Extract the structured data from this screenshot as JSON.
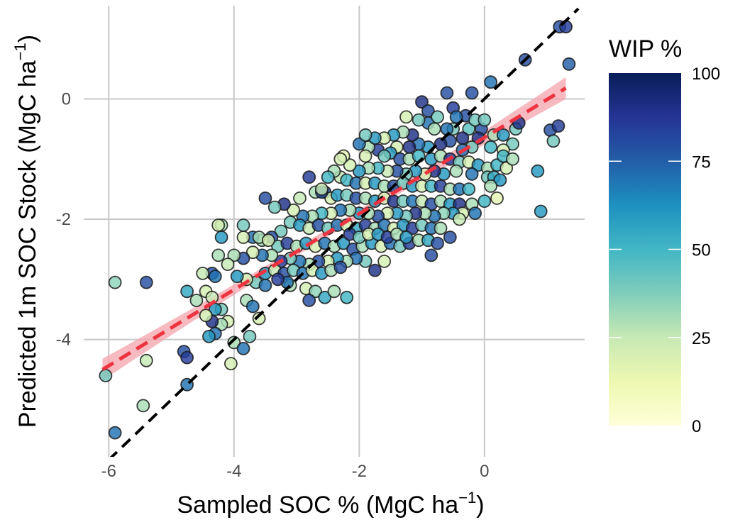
{
  "chart_data": {
    "type": "scatter",
    "title": "",
    "xlabel": "Sampled SOC % (MgC ha",
    "xlabel_sup": "−1",
    "xlabel_end": ")",
    "ylabel": "Predicted 1m SOC Stock (MgC ha",
    "ylabel_sup": "−1",
    "ylabel_end": ")",
    "xlim": [
      -6.4,
      1.6
    ],
    "ylim": [
      -5.95,
      1.55
    ],
    "x_ticks": [
      -6,
      -4,
      -2,
      0
    ],
    "x_tick_labels": [
      "-6",
      "-4",
      "-2",
      "0"
    ],
    "y_ticks": [
      -4,
      -2,
      0
    ],
    "y_tick_labels": [
      "-4",
      "-2",
      "0"
    ],
    "grid": true,
    "color_variable": "WIP %",
    "colorbar": {
      "title": "WIP %",
      "min": 0,
      "max": 100,
      "ticks": [
        0,
        25,
        50,
        75,
        100
      ],
      "tick_labels": [
        "0",
        "25",
        "50",
        "75",
        "100"
      ],
      "colors": [
        "#ffffd9",
        "#edf8b1",
        "#c7e9b4",
        "#7fcdbb",
        "#41b6c4",
        "#1d91c0",
        "#225ea8",
        "#253494",
        "#081d58"
      ]
    },
    "identity_line": {
      "from": [
        -6.0,
        -6.0
      ],
      "to": [
        1.5,
        1.5
      ],
      "color": "#000000",
      "style": "dashed"
    },
    "regression_line": {
      "from": [
        -6.1,
        -4.5
      ],
      "to": [
        1.3,
        0.18
      ],
      "color": "#ee3340",
      "ci_width": 0.13,
      "style": "dashed"
    },
    "points": [
      [
        1.2,
        1.2,
        80
      ],
      [
        1.3,
        1.2,
        85
      ],
      [
        1.35,
        0.58,
        75
      ],
      [
        0.65,
        0.65,
        80
      ],
      [
        0.1,
        0.28,
        70
      ],
      [
        -0.2,
        0.1,
        80
      ],
      [
        -0.6,
        0.1,
        80
      ],
      [
        1.05,
        -0.52,
        80
      ],
      [
        1.18,
        -0.45,
        85
      ],
      [
        1.1,
        -0.7,
        40
      ],
      [
        0.9,
        -1.87,
        60
      ],
      [
        -1.0,
        -0.05,
        90
      ],
      [
        -0.9,
        -0.2,
        80
      ],
      [
        -0.5,
        -0.15,
        85
      ],
      [
        -0.3,
        -0.28,
        80
      ],
      [
        -0.9,
        -0.4,
        70
      ],
      [
        -0.8,
        -0.5,
        30
      ],
      [
        -0.5,
        -0.5,
        40
      ],
      [
        -0.6,
        -0.5,
        70
      ],
      [
        -0.25,
        -0.5,
        45
      ],
      [
        -0.05,
        -0.5,
        80
      ],
      [
        0.15,
        -0.6,
        30
      ],
      [
        0.3,
        -0.6,
        60
      ],
      [
        0.5,
        -0.5,
        40
      ],
      [
        0.45,
        -0.75,
        40
      ],
      [
        0.3,
        -0.85,
        20
      ],
      [
        0.1,
        -0.8,
        50
      ],
      [
        -0.1,
        -0.65,
        90
      ],
      [
        -0.2,
        -0.8,
        40
      ],
      [
        -0.35,
        -0.85,
        70
      ],
      [
        -0.55,
        -0.7,
        80
      ],
      [
        -0.7,
        -0.75,
        90
      ],
      [
        -0.9,
        -0.8,
        60
      ],
      [
        -1.05,
        -0.75,
        70
      ],
      [
        -1.2,
        -0.8,
        90
      ],
      [
        -1.4,
        -0.8,
        20
      ],
      [
        -1.5,
        -0.9,
        60
      ],
      [
        -1.7,
        -0.85,
        85
      ],
      [
        -1.85,
        -0.8,
        30
      ],
      [
        -2.0,
        -0.75,
        70
      ],
      [
        -1.9,
        -0.95,
        20
      ],
      [
        -1.6,
        -0.95,
        40
      ],
      [
        -1.35,
        -1.0,
        80
      ],
      [
        -1.2,
        -1.0,
        30
      ],
      [
        -1.05,
        -0.95,
        50
      ],
      [
        -0.85,
        -1.0,
        60
      ],
      [
        -0.7,
        -0.95,
        30
      ],
      [
        -0.55,
        -1.0,
        85
      ],
      [
        -0.4,
        -1.05,
        40
      ],
      [
        -0.25,
        -1.05,
        20
      ],
      [
        -0.1,
        -1.1,
        60
      ],
      [
        0.05,
        -1.15,
        30
      ],
      [
        0.2,
        -1.1,
        50
      ],
      [
        0.35,
        -1.15,
        20
      ],
      [
        0.05,
        -1.3,
        40
      ],
      [
        -0.2,
        -1.25,
        70
      ],
      [
        -0.45,
        -1.2,
        30
      ],
      [
        -0.65,
        -1.25,
        60
      ],
      [
        -0.8,
        -1.2,
        90
      ],
      [
        -0.95,
        -1.25,
        20
      ],
      [
        -1.1,
        -1.2,
        60
      ],
      [
        -1.25,
        -1.25,
        40
      ],
      [
        -1.4,
        -1.2,
        80
      ],
      [
        -1.55,
        -1.2,
        25
      ],
      [
        -1.7,
        -1.15,
        50
      ],
      [
        -1.85,
        -1.15,
        30
      ],
      [
        -2.0,
        -1.2,
        60
      ],
      [
        -2.15,
        -1.1,
        20
      ],
      [
        -2.25,
        -0.95,
        15
      ],
      [
        -2.3,
        -1.3,
        25
      ],
      [
        -2.2,
        -1.35,
        50
      ],
      [
        -2.05,
        -1.4,
        70
      ],
      [
        -1.9,
        -1.4,
        20
      ],
      [
        -1.75,
        -1.4,
        60
      ],
      [
        -1.6,
        -1.45,
        30
      ],
      [
        -1.45,
        -1.45,
        80
      ],
      [
        -1.3,
        -1.4,
        40
      ],
      [
        -1.15,
        -1.45,
        60
      ],
      [
        -1.0,
        -1.45,
        20
      ],
      [
        -0.85,
        -1.45,
        50
      ],
      [
        -0.7,
        -1.45,
        85
      ],
      [
        -0.55,
        -1.5,
        30
      ],
      [
        -0.4,
        -1.5,
        70
      ],
      [
        -0.25,
        -1.5,
        50
      ],
      [
        0.15,
        -1.3,
        55
      ],
      [
        0.25,
        -1.35,
        60
      ],
      [
        -2.8,
        -1.3,
        85
      ],
      [
        -2.7,
        -1.55,
        30
      ],
      [
        -2.55,
        -1.55,
        80
      ],
      [
        -2.45,
        -1.65,
        20
      ],
      [
        -2.35,
        -1.6,
        60
      ],
      [
        -2.2,
        -1.6,
        40
      ],
      [
        -2.05,
        -1.65,
        80
      ],
      [
        -1.9,
        -1.65,
        30
      ],
      [
        -1.75,
        -1.7,
        60
      ],
      [
        -1.6,
        -1.65,
        20
      ],
      [
        -1.45,
        -1.7,
        90
      ],
      [
        -1.3,
        -1.7,
        40
      ],
      [
        -1.15,
        -1.7,
        70
      ],
      [
        -1.0,
        -1.7,
        25
      ],
      [
        -0.85,
        -1.75,
        80
      ],
      [
        -0.7,
        -1.7,
        30
      ],
      [
        -0.55,
        -1.75,
        60
      ],
      [
        -0.4,
        -1.75,
        90
      ],
      [
        -0.2,
        -1.75,
        30
      ],
      [
        0.0,
        -1.7,
        50
      ],
      [
        0.1,
        -1.45,
        30
      ],
      [
        0.2,
        -1.65,
        15
      ],
      [
        -0.15,
        -1.9,
        70
      ],
      [
        -0.35,
        -1.9,
        20
      ],
      [
        -0.5,
        -1.9,
        60
      ],
      [
        -0.65,
        -1.9,
        35
      ],
      [
        -0.8,
        -1.95,
        70
      ],
      [
        -0.95,
        -1.9,
        30
      ],
      [
        -1.1,
        -1.9,
        90
      ],
      [
        -1.25,
        -1.95,
        40
      ],
      [
        -1.4,
        -1.9,
        60
      ],
      [
        -1.55,
        -1.9,
        20
      ],
      [
        -1.7,
        -1.95,
        80
      ],
      [
        -1.85,
        -1.9,
        30
      ],
      [
        -2.0,
        -1.9,
        60
      ],
      [
        -2.15,
        -1.85,
        30
      ],
      [
        -2.3,
        -1.85,
        70
      ],
      [
        -2.45,
        -1.9,
        20
      ],
      [
        -2.6,
        -1.9,
        50
      ],
      [
        -2.75,
        -1.95,
        30
      ],
      [
        -2.9,
        -1.95,
        70
      ],
      [
        -3.05,
        -1.85,
        20
      ],
      [
        -3.2,
        -1.75,
        90
      ],
      [
        -3.35,
        -1.8,
        40
      ],
      [
        -3.5,
        -1.65,
        80
      ],
      [
        -2.6,
        -1.55,
        80
      ],
      [
        -2.95,
        -1.65,
        25
      ],
      [
        -3.1,
        -2.05,
        40
      ],
      [
        -2.95,
        -2.1,
        60
      ],
      [
        -2.8,
        -2.15,
        25
      ],
      [
        -2.65,
        -2.1,
        80
      ],
      [
        -2.5,
        -2.15,
        40
      ],
      [
        -2.35,
        -2.1,
        70
      ],
      [
        -2.2,
        -2.1,
        20
      ],
      [
        -2.05,
        -2.15,
        55
      ],
      [
        -1.9,
        -2.1,
        85
      ],
      [
        -1.75,
        -2.15,
        30
      ],
      [
        -1.6,
        -2.1,
        70
      ],
      [
        -1.45,
        -2.15,
        20
      ],
      [
        -1.3,
        -2.1,
        60
      ],
      [
        -1.15,
        -2.15,
        85
      ],
      [
        -1.0,
        -2.1,
        40
      ],
      [
        -0.85,
        -2.15,
        70
      ],
      [
        -0.7,
        -2.15,
        30
      ],
      [
        -0.55,
        -2.3,
        80
      ],
      [
        -0.4,
        -2.0,
        25
      ],
      [
        -3.25,
        -2.2,
        40
      ],
      [
        -3.4,
        -2.3,
        80
      ],
      [
        -3.55,
        -2.35,
        30
      ],
      [
        -3.7,
        -2.3,
        70
      ],
      [
        -3.85,
        -2.3,
        20
      ],
      [
        -3.3,
        -2.45,
        40
      ],
      [
        -3.15,
        -2.4,
        85
      ],
      [
        -3.0,
        -2.45,
        30
      ],
      [
        -2.85,
        -2.4,
        60
      ],
      [
        -2.7,
        -2.45,
        20
      ],
      [
        -2.55,
        -2.4,
        70
      ],
      [
        -2.4,
        -2.45,
        30
      ],
      [
        -2.25,
        -2.4,
        60
      ],
      [
        -2.1,
        -2.5,
        80
      ],
      [
        -1.95,
        -2.45,
        30
      ],
      [
        -1.8,
        -2.4,
        60
      ],
      [
        -1.65,
        -2.45,
        20
      ],
      [
        -1.5,
        -2.4,
        70
      ],
      [
        -1.35,
        -2.45,
        40
      ],
      [
        -1.2,
        -2.4,
        85
      ],
      [
        -1.05,
        -2.35,
        30
      ],
      [
        -0.9,
        -2.35,
        55
      ],
      [
        -0.75,
        -2.4,
        80
      ],
      [
        -0.85,
        -2.6,
        80
      ],
      [
        -1.6,
        -2.7,
        20
      ],
      [
        -1.75,
        -2.85,
        90
      ],
      [
        -1.9,
        -2.7,
        40
      ],
      [
        -2.05,
        -2.65,
        70
      ],
      [
        -2.2,
        -2.7,
        30
      ],
      [
        -2.35,
        -2.65,
        60
      ],
      [
        -2.5,
        -2.7,
        20
      ],
      [
        -2.65,
        -2.7,
        80
      ],
      [
        -2.8,
        -2.75,
        30
      ],
      [
        -2.95,
        -2.7,
        70
      ],
      [
        -3.1,
        -2.65,
        40
      ],
      [
        -3.25,
        -2.7,
        85
      ],
      [
        -3.4,
        -2.6,
        30
      ],
      [
        -3.55,
        -2.6,
        70
      ],
      [
        -3.7,
        -2.55,
        20
      ],
      [
        -3.85,
        -2.65,
        80
      ],
      [
        -4.0,
        -2.6,
        30
      ],
      [
        -3.5,
        -2.9,
        60
      ],
      [
        -3.35,
        -2.85,
        25
      ],
      [
        -3.2,
        -2.9,
        80
      ],
      [
        -3.05,
        -2.85,
        40
      ],
      [
        -2.9,
        -2.9,
        70
      ],
      [
        -2.75,
        -2.85,
        20
      ],
      [
        -2.6,
        -2.9,
        60
      ],
      [
        -2.45,
        -2.85,
        30
      ],
      [
        -2.3,
        -2.8,
        80
      ],
      [
        -3.65,
        -3.05,
        40
      ],
      [
        -3.5,
        -3.1,
        70
      ],
      [
        -3.8,
        -3.0,
        20
      ],
      [
        -3.95,
        -2.95,
        60
      ],
      [
        -3.1,
        -3.1,
        30
      ],
      [
        -2.85,
        -3.15,
        20
      ],
      [
        -2.7,
        -3.2,
        35
      ],
      [
        -2.55,
        -3.3,
        55
      ],
      [
        -2.4,
        -3.2,
        30
      ],
      [
        -2.2,
        -3.3,
        50
      ],
      [
        -2.8,
        -3.35,
        80
      ],
      [
        -3.15,
        -3.05,
        70
      ],
      [
        -3.3,
        -3.0,
        85
      ],
      [
        -4.1,
        -2.75,
        25
      ],
      [
        -4.2,
        -2.1,
        30
      ],
      [
        -4.25,
        -2.6,
        30
      ],
      [
        -4.2,
        -2.3,
        60
      ],
      [
        -4.35,
        -2.9,
        80
      ],
      [
        -4.3,
        -2.95,
        70
      ],
      [
        -4.5,
        -2.9,
        25
      ],
      [
        -4.45,
        -3.2,
        20
      ],
      [
        -4.35,
        -3.3,
        25
      ],
      [
        -4.2,
        -3.5,
        40
      ],
      [
        -4.3,
        -3.5,
        60
      ],
      [
        -4.6,
        -3.35,
        30
      ],
      [
        -4.75,
        -3.2,
        55
      ],
      [
        -4.1,
        -3.7,
        20
      ],
      [
        -4.2,
        -3.75,
        30
      ],
      [
        -4.3,
        -3.9,
        70
      ],
      [
        -4.4,
        -3.95,
        60
      ],
      [
        -4.35,
        -3.7,
        90
      ],
      [
        -4.45,
        -3.6,
        20
      ],
      [
        -4.0,
        -4.05,
        30
      ],
      [
        -4.05,
        -4.4,
        20
      ],
      [
        -3.85,
        -4.15,
        70
      ],
      [
        -3.8,
        -3.35,
        30
      ],
      [
        -3.7,
        -3.45,
        70
      ],
      [
        -3.6,
        -3.65,
        20
      ],
      [
        -3.75,
        -3.95,
        40
      ],
      [
        -4.8,
        -4.2,
        80
      ],
      [
        -4.75,
        -4.3,
        85
      ],
      [
        -4.75,
        -4.75,
        70
      ],
      [
        -5.4,
        -3.05,
        80
      ],
      [
        -5.9,
        -3.05,
        35
      ],
      [
        -5.4,
        -4.35,
        25
      ],
      [
        -5.45,
        -5.1,
        30
      ],
      [
        -6.05,
        -4.6,
        40
      ],
      [
        -5.9,
        -5.55,
        70
      ],
      [
        -4.25,
        -2.1,
        20
      ],
      [
        -3.85,
        -2.1,
        40
      ],
      [
        -3.6,
        -2.3,
        30
      ],
      [
        -3.45,
        -2.35,
        20
      ],
      [
        -2.15,
        -2.25,
        85
      ],
      [
        -2.0,
        -2.3,
        40
      ],
      [
        -1.85,
        -2.25,
        20
      ],
      [
        -1.7,
        -2.25,
        60
      ],
      [
        -1.55,
        -2.3,
        85
      ],
      [
        -1.4,
        -2.25,
        30
      ],
      [
        -1.25,
        -2.3,
        60
      ],
      [
        -2.3,
        -1.0,
        20
      ],
      [
        -2.4,
        -1.2,
        30
      ],
      [
        -2.5,
        -1.3,
        50
      ],
      [
        -2.6,
        -1.5,
        25
      ],
      [
        -1.15,
        -0.6,
        90
      ],
      [
        -1.3,
        -0.55,
        30
      ],
      [
        -1.45,
        -0.6,
        60
      ],
      [
        -1.6,
        -0.65,
        20
      ],
      [
        -1.75,
        -0.65,
        60
      ],
      [
        -1.9,
        -0.6,
        40
      ],
      [
        -1.05,
        -0.35,
        40
      ],
      [
        -1.25,
        -0.3,
        20
      ],
      [
        -0.75,
        -0.3,
        40
      ],
      [
        -0.45,
        -0.3,
        70
      ],
      [
        -0.15,
        -0.35,
        40
      ],
      [
        -0.35,
        -0.65,
        90
      ],
      [
        0.0,
        -0.35,
        40
      ],
      [
        0.3,
        -0.95,
        50
      ],
      [
        0.45,
        -1.0,
        30
      ],
      [
        0.55,
        -0.4,
        90
      ],
      [
        0.85,
        -1.2,
        60
      ]
    ]
  }
}
